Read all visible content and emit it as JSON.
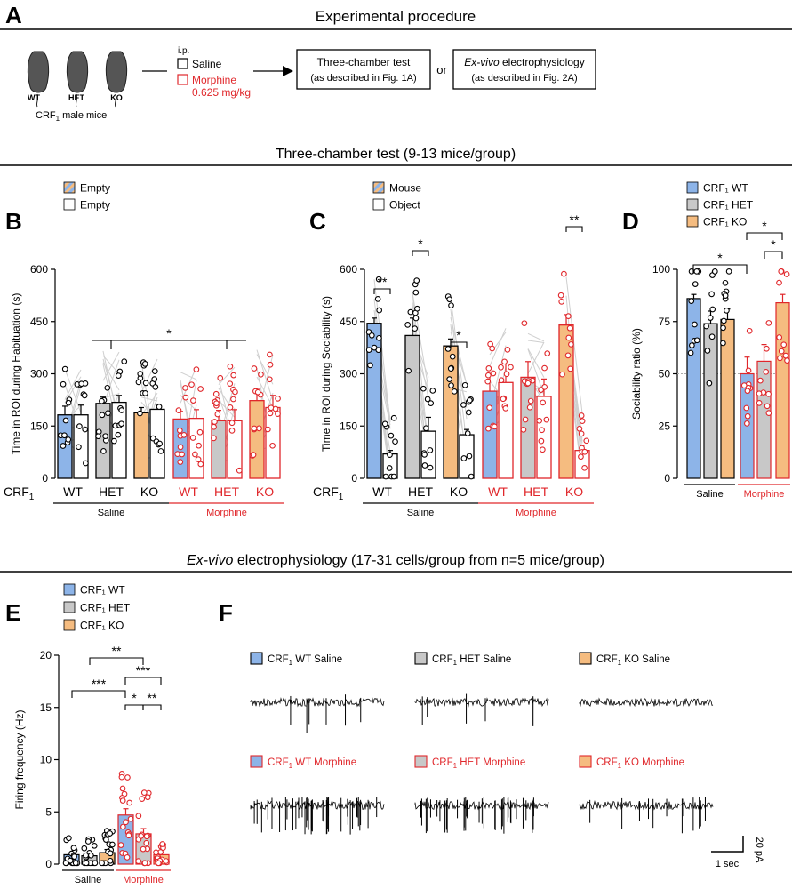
{
  "panel_letters": {
    "a": "A",
    "b": "B",
    "c": "C",
    "d": "D",
    "e": "E",
    "f": "F"
  },
  "section_titles": {
    "procedure": "Experimental procedure",
    "three_chamber": "Three-chamber test (9-13 mice/group)",
    "ephys_em": "Ex-vivo",
    "ephys_rest": " electrophysiology (17-31 cells/group from n=5 mice/group)"
  },
  "procedure": {
    "genotypes": [
      "WT",
      "HET",
      "KO"
    ],
    "mice_caption_main": "CRF",
    "mice_caption_sub": "1",
    "mice_caption_rest": " male mice",
    "ip": "i.p.",
    "saline": "Saline",
    "morphine": "Morphine",
    "morphine_dose": "0.625 mg/kg",
    "box1_line1": "Three-chamber test",
    "box1_line2": "(as described in Fig. 1A)",
    "or": "or",
    "box2_em": "Ex-vivo",
    "box2_rest": " electrophysiology",
    "box2_line2": "(as described in Fig. 2A)"
  },
  "colors": {
    "wt": "#8db4e8",
    "het": "#c8c8c8",
    "ko": "#f5bc80",
    "morphine": "#e0272b",
    "black": "#000000",
    "grey_line": "#cfcfcf"
  },
  "chart_data": [
    {
      "id": "B",
      "type": "bar",
      "ylabel": "Time in ROI during Habituation (s)",
      "ylim": [
        0,
        600
      ],
      "yticks": [
        0,
        150,
        300,
        450,
        600
      ],
      "legend": [
        "Empty",
        "Empty"
      ],
      "group_label": "CRF",
      "group_sub": "1",
      "categories": [
        "WT",
        "HET",
        "KO",
        "WT",
        "HET",
        "KO"
      ],
      "treatments": [
        "Saline",
        "Saline",
        "Saline",
        "Morphine",
        "Morphine",
        "Morphine"
      ],
      "series": [
        {
          "name": "Empty (hatched)",
          "values": [
            182,
            215,
            188,
            170,
            165,
            223
          ],
          "sem": [
            25,
            18,
            15,
            22,
            30,
            35
          ]
        },
        {
          "name": "Empty (open)",
          "values": [
            182,
            218,
            198,
            172,
            165,
            203
          ],
          "sem": [
            28,
            20,
            15,
            25,
            32,
            35
          ]
        }
      ],
      "treatment_labels": [
        "Saline",
        "Morphine"
      ],
      "significance": [
        {
          "label": "*"
        }
      ]
    },
    {
      "id": "C",
      "type": "bar",
      "ylabel": "Time in ROI during Sociability (s)",
      "ylim": [
        0,
        600
      ],
      "yticks": [
        0,
        150,
        300,
        450,
        600
      ],
      "legend": [
        "Mouse",
        "Object"
      ],
      "group_label": "CRF",
      "group_sub": "1",
      "categories": [
        "WT",
        "HET",
        "KO",
        "WT",
        "HET",
        "KO"
      ],
      "treatments": [
        "Saline",
        "Saline",
        "Saline",
        "Morphine",
        "Morphine",
        "Morphine"
      ],
      "series": [
        {
          "name": "Mouse",
          "values": [
            445,
            410,
            380,
            250,
            290,
            440
          ],
          "sem": [
            15,
            50,
            20,
            50,
            45,
            30
          ]
        },
        {
          "name": "Object",
          "values": [
            70,
            135,
            125,
            275,
            235,
            80
          ],
          "sem": [
            10,
            40,
            15,
            60,
            50,
            15
          ]
        }
      ],
      "treatment_labels": [
        "Saline",
        "Morphine"
      ],
      "significance": [
        {
          "label": "**"
        },
        {
          "label": "*"
        },
        {
          "label": "*"
        },
        {
          "label": "**"
        }
      ]
    },
    {
      "id": "D",
      "type": "bar",
      "ylabel": "Sociability ratio (%)",
      "ylim": [
        0,
        100
      ],
      "yticks": [
        0,
        25,
        50,
        75,
        100
      ],
      "legend": [
        "CRF₁ WT",
        "CRF₁ HET",
        "CRF₁ KO"
      ],
      "categories": [
        "WT",
        "HET",
        "KO",
        "WT",
        "HET",
        "KO"
      ],
      "treatments": [
        "Saline",
        "Saline",
        "Saline",
        "Morphine",
        "Morphine",
        "Morphine"
      ],
      "values": [
        86,
        74,
        76,
        50,
        56,
        84
      ],
      "sem": [
        2,
        6,
        5,
        8,
        8,
        4
      ],
      "reference_line": 50,
      "treatment_labels": [
        "Saline",
        "Morphine"
      ],
      "significance": [
        {
          "label": "*"
        },
        {
          "label": "*"
        },
        {
          "label": "*"
        }
      ]
    },
    {
      "id": "E",
      "type": "bar",
      "ylabel": "Firing frequency (Hz)",
      "ylim": [
        0,
        20
      ],
      "yticks": [
        0,
        5,
        10,
        15,
        20
      ],
      "legend": [
        "CRF₁ WT",
        "CRF₁ HET",
        "CRF₁ KO"
      ],
      "categories": [
        "WT",
        "HET",
        "KO",
        "WT",
        "HET",
        "KO"
      ],
      "treatments": [
        "Saline",
        "Saline",
        "Saline",
        "Morphine",
        "Morphine",
        "Morphine"
      ],
      "values": [
        0.9,
        0.8,
        1.1,
        4.7,
        2.9,
        0.9
      ],
      "sem": [
        0.2,
        0.2,
        0.3,
        0.6,
        0.5,
        0.2
      ],
      "treatment_labels": [
        "Saline",
        "Morphine"
      ],
      "significance": [
        {
          "label": "***"
        },
        {
          "label": "**"
        },
        {
          "label": "***"
        },
        {
          "label": "*"
        },
        {
          "label": "**"
        }
      ]
    }
  ],
  "traces": {
    "labels": [
      {
        "group": "CRF",
        "sub": "1",
        "rest": " WT Saline",
        "kind": "wt",
        "morphine": false
      },
      {
        "group": "CRF",
        "sub": "1",
        "rest": " HET Saline",
        "kind": "het",
        "morphine": false
      },
      {
        "group": "CRF",
        "sub": "1",
        "rest": " KO Saline",
        "kind": "ko",
        "morphine": false
      },
      {
        "group": "CRF",
        "sub": "1",
        "rest": " WT Morphine",
        "kind": "wt",
        "morphine": true
      },
      {
        "group": "CRF",
        "sub": "1",
        "rest": " HET Morphine",
        "kind": "het",
        "morphine": true
      },
      {
        "group": "CRF",
        "sub": "1",
        "rest": " KO Morphine",
        "kind": "ko",
        "morphine": true
      }
    ],
    "scale_time": "1 sec",
    "scale_amp": "20 pA"
  }
}
